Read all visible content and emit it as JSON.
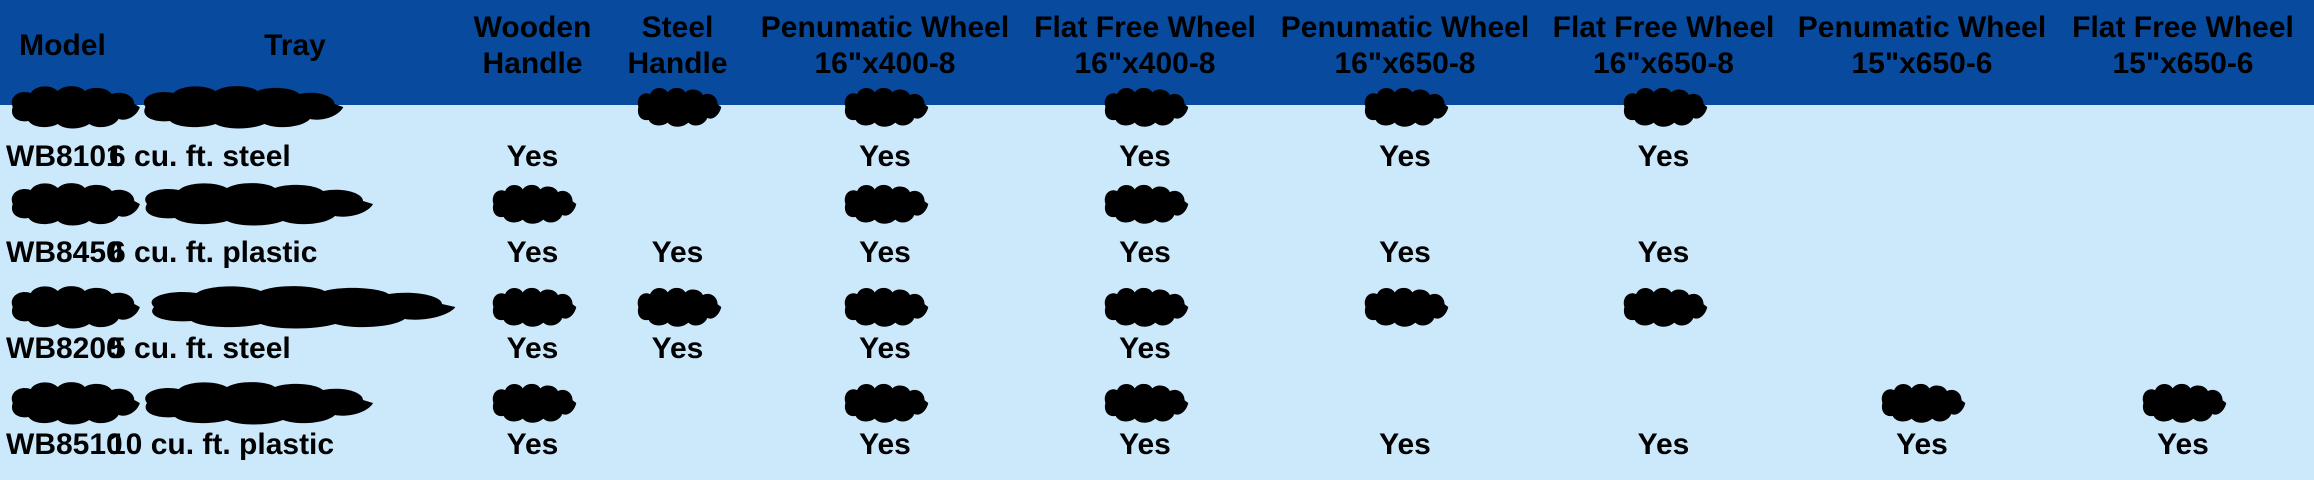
{
  "colors": {
    "header_bg": "#084a9e",
    "body_bg": "#cce9fc",
    "redaction": "#000000",
    "text": "#000000"
  },
  "table": {
    "name": "wheelbarrow-spec-table",
    "columns": [
      {
        "id": "model",
        "label_lines": [
          "Model"
        ]
      },
      {
        "id": "tray",
        "label_lines": [
          "Tray"
        ]
      },
      {
        "id": "wooden-handle",
        "label_lines": [
          "Wooden",
          "Handle"
        ]
      },
      {
        "id": "steel-handle",
        "label_lines": [
          "Steel",
          "Handle"
        ]
      },
      {
        "id": "penumatic-wheel-16x400-8",
        "label_lines": [
          "Penumatic Wheel",
          "16\"x400-8"
        ]
      },
      {
        "id": "flat-free-wheel-16x400-8",
        "label_lines": [
          "Flat Free Wheel",
          "16\"x400-8"
        ]
      },
      {
        "id": "penumatic-wheel-16x650-8",
        "label_lines": [
          "Penumatic Wheel",
          "16\"x650-8"
        ]
      },
      {
        "id": "flat-free-wheel-16x650-8",
        "label_lines": [
          "Flat Free Wheel",
          "16\"x650-8"
        ]
      },
      {
        "id": "penumatic-wheel-15x650-6",
        "label_lines": [
          "Penumatic Wheel",
          "15\"x650-6"
        ]
      },
      {
        "id": "flat-free-wheel-15x650-6",
        "label_lines": [
          "Flat Free Wheel",
          "15\"x650-6"
        ]
      }
    ],
    "yes_label": "Yes",
    "rows": [
      {
        "cells": [
          "REDACTED",
          "REDACTED",
          "",
          "REDACTED",
          "REDACTED",
          "REDACTED",
          "REDACTED",
          "REDACTED",
          "",
          ""
        ]
      },
      {
        "cells": [
          "WB8101",
          "6 cu. ft. steel",
          "Yes",
          "",
          "Yes",
          "Yes",
          "Yes",
          "Yes",
          "",
          ""
        ]
      },
      {
        "cells": [
          "REDACTED",
          "REDACTED",
          "REDACTED",
          "",
          "REDACTED",
          "REDACTED",
          "",
          "",
          "",
          ""
        ]
      },
      {
        "cells": [
          "WB8450",
          "6 cu. ft. plastic",
          "Yes",
          "Yes",
          "Yes",
          "Yes",
          "Yes",
          "Yes",
          "",
          ""
        ]
      },
      {
        "cells": [
          "REDACTED",
          "REDACTED",
          "REDACTED",
          "REDACTED",
          "REDACTED",
          "REDACTED",
          "REDACTED",
          "REDACTED",
          "",
          ""
        ]
      },
      {
        "cells": [
          "WB8200",
          "5 cu. ft. steel",
          "Yes",
          "Yes",
          "Yes",
          "Yes",
          "",
          "",
          "",
          ""
        ]
      },
      {
        "cells": [
          "REDACTED",
          "REDACTED",
          "REDACTED",
          "",
          "REDACTED",
          "REDACTED",
          "",
          "",
          "REDACTED",
          "REDACTED"
        ]
      },
      {
        "cells": [
          "WB8510",
          "10 cu. ft. plastic",
          "Yes",
          "",
          "Yes",
          "Yes",
          "Yes",
          "Yes",
          "Yes",
          "Yes"
        ]
      }
    ]
  }
}
